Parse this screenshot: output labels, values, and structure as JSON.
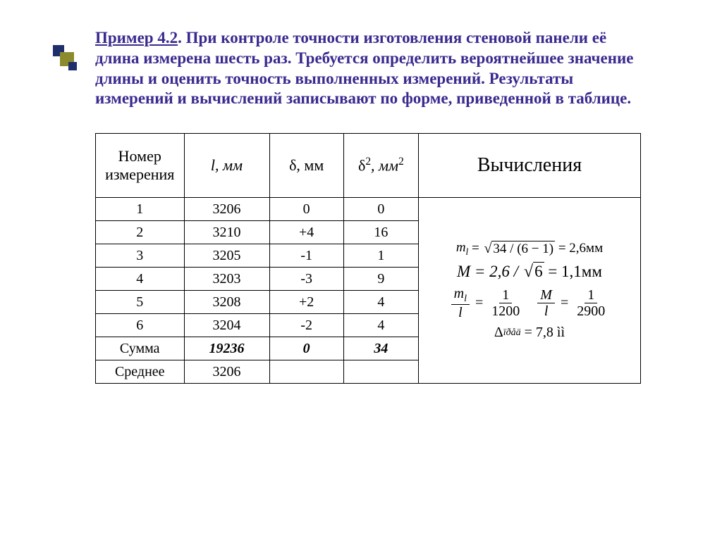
{
  "title": {
    "example_label": "Пример 4.2",
    "text_after": ". При контроле точности изготовления стеновой  панели её длина измерена  шесть раз. Требуется определить вероятнейшее значение длины и оценить точность выполненных измерений. Результаты измерений и вычислений записывают по форме, приведенной в таблице."
  },
  "table": {
    "headers": {
      "num": "Номер измерения",
      "l": "l, мм",
      "delta": "δ, мм",
      "calc": "Вычисления"
    },
    "header_delta2": {
      "delta": "δ",
      "sq": "2",
      "unit": ", мм",
      "sq2": "2"
    },
    "rows": [
      {
        "n": "1",
        "l": "3206",
        "d": "0",
        "d2": "0"
      },
      {
        "n": "2",
        "l": "3210",
        "d": "+4",
        "d2": "16"
      },
      {
        "n": "3",
        "l": "3205",
        "d": "-1",
        "d2": "1"
      },
      {
        "n": "4",
        "l": "3203",
        "d": "-3",
        "d2": "9"
      },
      {
        "n": "5",
        "l": "3208",
        "d": "+2",
        "d2": "4"
      },
      {
        "n": "6",
        "l": "3204",
        "d": "-2",
        "d2": "4"
      }
    ],
    "sum": {
      "label": "Сумма",
      "l": "19236",
      "d": "0",
      "d2": "34"
    },
    "mean": {
      "label": "Среднее",
      "l": "3206"
    }
  },
  "calc": {
    "f1": {
      "lhs": "m",
      "sub": "l",
      "rad": "34 / (6 − 1)",
      "rhs": "= 2,6мм"
    },
    "f2": {
      "lhs": "M = 2,6 /",
      "rad": "6",
      "rhs": "= 1,1мм"
    },
    "f3": {
      "a_num": "m",
      "a_sub": "l",
      "a_den": "l",
      "a_eq_num": "1",
      "a_eq_den": "1200",
      "b_num": "M",
      "b_den": "l",
      "b_eq_num": "1",
      "b_eq_den": "2900"
    },
    "f4": {
      "sym": "Δ",
      "sub": "ïðåä",
      "eq": "= 7,8 ìì"
    }
  },
  "style": {
    "title_color": "#3a2a8f",
    "border_color": "#000000",
    "background": "#ffffff"
  }
}
